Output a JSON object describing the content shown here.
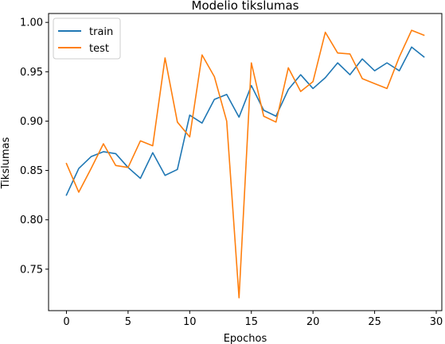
{
  "chart_data": {
    "type": "line",
    "title": "Modelio tikslumas",
    "xlabel": "Epochos",
    "ylabel": "Tikslumas",
    "xlim": [
      -1.45,
      30.45
    ],
    "ylim": [
      0.708,
      1.009
    ],
    "x_ticks": [
      0,
      5,
      10,
      15,
      20,
      25,
      30
    ],
    "y_ticks": [
      0.75,
      0.8,
      0.85,
      0.9,
      0.95,
      1.0
    ],
    "x_tick_labels": [
      "0",
      "5",
      "10",
      "15",
      "20",
      "25",
      "30"
    ],
    "y_tick_labels": [
      "0.75",
      "0.80",
      "0.85",
      "0.90",
      "0.95",
      "1.00"
    ],
    "grid": false,
    "legend_position": "top-left",
    "x": [
      0,
      1,
      2,
      3,
      4,
      5,
      6,
      7,
      8,
      9,
      10,
      11,
      12,
      13,
      14,
      15,
      16,
      17,
      18,
      19,
      20,
      21,
      22,
      23,
      24,
      25,
      26,
      27,
      28,
      29
    ],
    "series": [
      {
        "name": "train",
        "color": "#1f77b4",
        "values": [
          0.825,
          0.852,
          0.864,
          0.869,
          0.867,
          0.853,
          0.842,
          0.868,
          0.845,
          0.851,
          0.906,
          0.898,
          0.922,
          0.927,
          0.904,
          0.936,
          0.911,
          0.905,
          0.932,
          0.947,
          0.933,
          0.944,
          0.959,
          0.947,
          0.963,
          0.951,
          0.959,
          0.951,
          0.975,
          0.965
        ]
      },
      {
        "name": "test",
        "color": "#ff7f0e",
        "values": [
          0.857,
          0.828,
          0.852,
          0.877,
          0.855,
          0.853,
          0.88,
          0.875,
          0.964,
          0.899,
          0.884,
          0.967,
          0.945,
          0.9,
          0.721,
          0.959,
          0.905,
          0.899,
          0.954,
          0.93,
          0.94,
          0.99,
          0.969,
          0.968,
          0.943,
          0.938,
          0.933,
          0.965,
          0.992,
          0.987
        ]
      }
    ]
  }
}
